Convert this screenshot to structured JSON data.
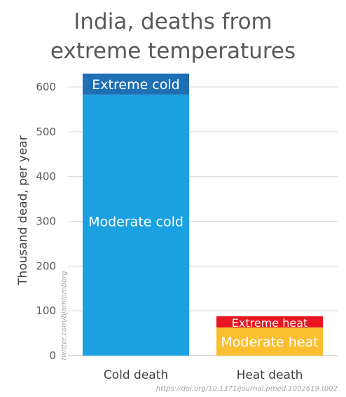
{
  "chart_data": {
    "type": "bar",
    "stacked": true,
    "title": [
      "India, deaths from",
      "extreme temperatures"
    ],
    "ylabel": "Thousand dead, per year",
    "xlabel": "",
    "ylim": [
      0,
      630
    ],
    "yticks": [
      0,
      100,
      200,
      300,
      400,
      500,
      600
    ],
    "grid": true,
    "categories": [
      "Cold death",
      "Heat death"
    ],
    "bars": [
      {
        "category": "Cold death",
        "segments": [
          {
            "label": "Moderate cold",
            "value": 583,
            "color": "#1ba1e2"
          },
          {
            "label": "Extreme cold",
            "value": 47,
            "color": "#1f6fb4"
          }
        ]
      },
      {
        "category": "Heat death",
        "segments": [
          {
            "label": "Moderate heat",
            "value": 63,
            "color": "#fbbe2e"
          },
          {
            "label": "Extreme heat",
            "value": 25,
            "color": "#e8141f"
          }
        ]
      }
    ]
  },
  "watermark": "twitter.com/bjornlomborg",
  "source": "https://doi.org/10.1371/journal.pmed.1002619.t002"
}
